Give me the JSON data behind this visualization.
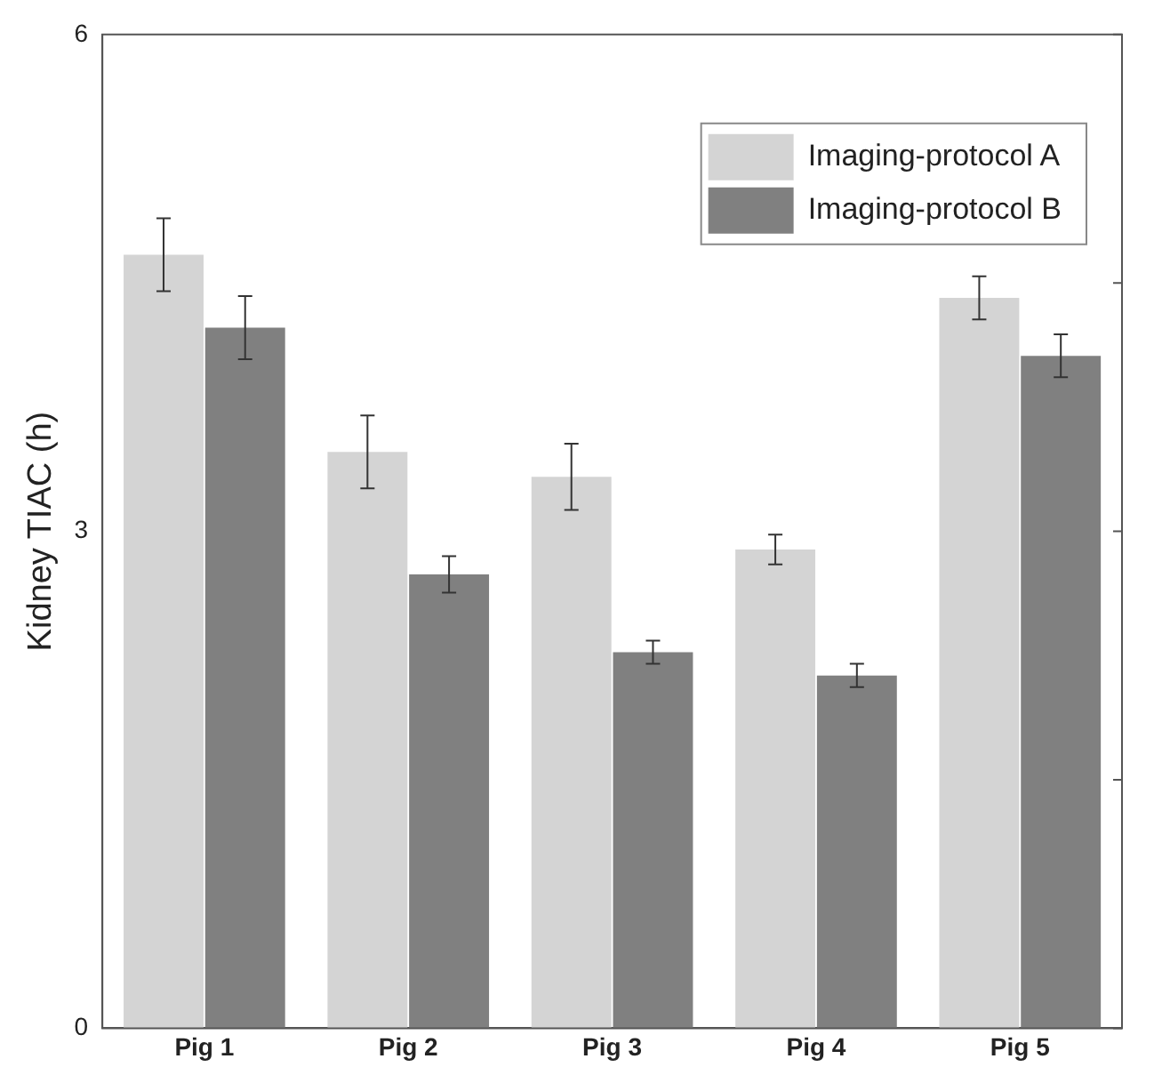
{
  "chart_data": {
    "type": "bar",
    "ylabel": "Kidney TIAC (h)",
    "categories": [
      "Pig 1",
      "Pig 2",
      "Pig 3",
      "Pig 4",
      "Pig 5"
    ],
    "series": [
      {
        "name": "Imaging-protocol A",
        "color": "#d4d4d4",
        "values": [
          4.67,
          3.48,
          3.33,
          2.89,
          4.41
        ],
        "errors": [
          0.22,
          0.22,
          0.2,
          0.09,
          0.13
        ]
      },
      {
        "name": "Imaging-protocol B",
        "color": "#808080",
        "values": [
          4.23,
          2.74,
          2.27,
          2.13,
          4.06
        ],
        "errors": [
          0.19,
          0.11,
          0.07,
          0.07,
          0.13
        ]
      }
    ],
    "ylim": [
      0,
      6
    ],
    "yticks": [
      0,
      {
        "value": 1.5,
        "label": null
      },
      3,
      {
        "value": 4.5,
        "label": null
      },
      6
    ],
    "grid": false,
    "legend": "top right"
  }
}
